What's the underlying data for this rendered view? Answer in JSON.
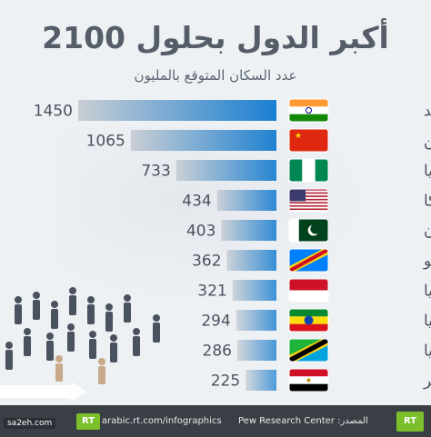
{
  "header": {
    "title": "أكبر الدول بحلول 2100",
    "subtitle": "عدد السكان المتوقع بالمليون"
  },
  "chart_data": {
    "type": "bar",
    "orientation": "horizontal",
    "categories": [
      "الهند",
      "الصين",
      "نيجيريا",
      "أمريكا",
      "باكستان",
      "الكونغو",
      "إندونيسيا",
      "إثيوبيا",
      "تنزانيا",
      "مصر"
    ],
    "values": [
      1450,
      1065,
      733,
      434,
      403,
      362,
      321,
      294,
      286,
      225
    ],
    "flags": [
      "india-flag-icon",
      "china-flag-icon",
      "nigeria-flag-icon",
      "usa-flag-icon",
      "pakistan-flag-icon",
      "congo-flag-icon",
      "indonesia-flag-icon",
      "ethiopia-flag-icon",
      "tanzania-flag-icon",
      "egypt-flag-icon"
    ],
    "bar_color_start": "#1a7fd1",
    "bar_color_end": "#c9ced4"
  },
  "footer": {
    "url": "arabic.rt.com/infographics",
    "source": "المصدر: Pew Research Center",
    "logo_left": "RT",
    "logo_right": "RT",
    "watermark": "sa2eh.com"
  },
  "colors": {
    "title": "#555d68",
    "footer": "#3a3f46",
    "rt_green": "#7bbf2a"
  }
}
